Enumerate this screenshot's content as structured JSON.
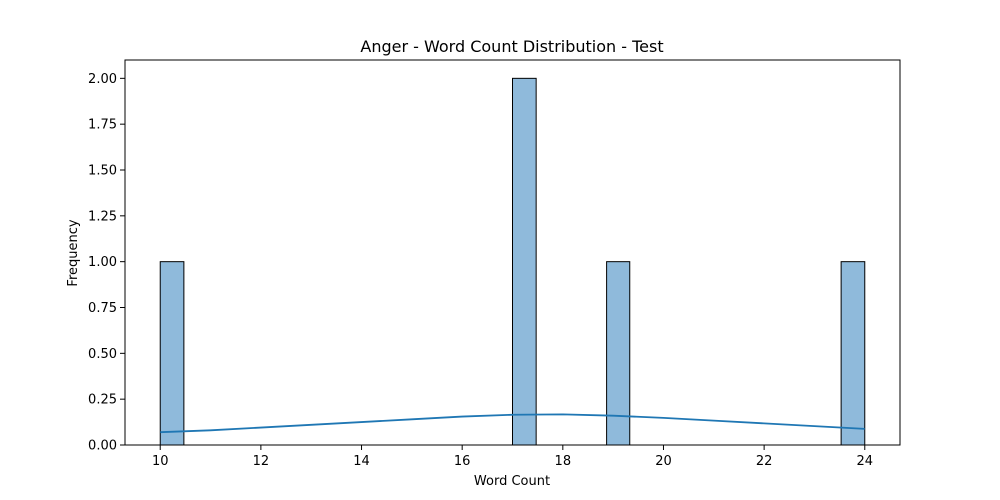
{
  "chart_data": {
    "type": "bar",
    "title": "Anger - Word Count Distribution - Test",
    "xlabel": "Word Count",
    "ylabel": "Frequency",
    "xlim": [
      9.3,
      24.7
    ],
    "ylim": [
      0,
      2.1
    ],
    "xticks": [
      10,
      12,
      14,
      16,
      18,
      20,
      22,
      24
    ],
    "yticks": [
      0.0,
      0.25,
      0.5,
      0.75,
      1.0,
      1.25,
      1.5,
      1.75,
      2.0
    ],
    "ytick_labels": [
      "0.00",
      "0.25",
      "0.50",
      "0.75",
      "1.00",
      "1.25",
      "1.50",
      "1.75",
      "2.00"
    ],
    "grid": false,
    "bar_color": "#8fbadb",
    "kde_color": "#1f77b4",
    "bins": [
      {
        "x0": 10.0,
        "x1": 10.47,
        "count": 1
      },
      {
        "x0": 17.0,
        "x1": 17.47,
        "count": 2
      },
      {
        "x0": 18.87,
        "x1": 19.33,
        "count": 1
      },
      {
        "x0": 23.53,
        "x1": 24.0,
        "count": 1
      }
    ],
    "kde": {
      "x": [
        10,
        11,
        12,
        13,
        14,
        15,
        16,
        17,
        18,
        19,
        20,
        21,
        22,
        23,
        24
      ],
      "y": [
        0.07,
        0.08,
        0.095,
        0.11,
        0.125,
        0.14,
        0.155,
        0.165,
        0.167,
        0.16,
        0.148,
        0.133,
        0.118,
        0.103,
        0.088
      ]
    }
  }
}
